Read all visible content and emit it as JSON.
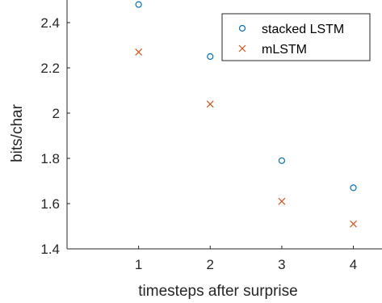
{
  "chart_data": {
    "type": "scatter",
    "xlabel": "timesteps after surprise",
    "ylabel": "bits/char",
    "xlim": [
      0,
      4.4
    ],
    "ylim": [
      1.4,
      2.5
    ],
    "x_ticks": [
      1,
      2,
      3,
      4
    ],
    "y_ticks": [
      1.4,
      1.6,
      1.8,
      2,
      2.2,
      2.4
    ],
    "y_tick_labels": [
      "1.4",
      "1.6",
      "1.8",
      "2",
      "2.2",
      "2.4"
    ],
    "grid": false,
    "legend_position": "top-right",
    "series": [
      {
        "name": "stacked LSTM",
        "marker": "circle",
        "color": "#0072BD",
        "x": [
          1,
          2,
          3,
          4
        ],
        "y": [
          2.48,
          2.25,
          1.79,
          1.67
        ]
      },
      {
        "name": "mLSTM",
        "marker": "x",
        "color": "#D95319",
        "x": [
          1,
          2,
          3,
          4
        ],
        "y": [
          2.27,
          2.04,
          1.61,
          1.51
        ]
      }
    ]
  }
}
